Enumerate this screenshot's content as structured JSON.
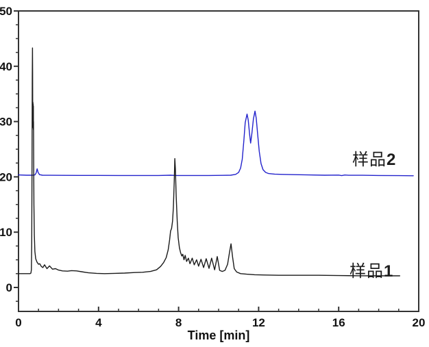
{
  "chart_data": {
    "type": "line",
    "title": "",
    "xlabel": "Time [min]",
    "ylabel": "",
    "xlim": [
      0,
      20
    ],
    "ylim": [
      -4.33,
      50
    ],
    "xticks": [
      0,
      4,
      8,
      12,
      16,
      20
    ],
    "yticks": [
      0,
      10,
      20,
      30,
      40,
      50
    ],
    "x_minor_step": 1,
    "y_minor_step": 2.5,
    "grid": false,
    "legend_position": "inline-right",
    "axis_color": "#333333",
    "series": [
      {
        "name": "样品2",
        "color": "#2222cc",
        "annotation": "double peak at ~11.4 and ~11.8 min, baseline offset +20",
        "points": [
          [
            0,
            20.35
          ],
          [
            0.4,
            20.3
          ],
          [
            0.7,
            20.3
          ],
          [
            0.82,
            20.35
          ],
          [
            0.88,
            20.7
          ],
          [
            0.93,
            21.45
          ],
          [
            0.98,
            20.8
          ],
          [
            1.05,
            20.4
          ],
          [
            1.2,
            20.3
          ],
          [
            1.6,
            20.28
          ],
          [
            2.2,
            20.27
          ],
          [
            3,
            20.26
          ],
          [
            4,
            20.26
          ],
          [
            5,
            20.25
          ],
          [
            6,
            20.25
          ],
          [
            7,
            20.25
          ],
          [
            7.6,
            20.3
          ],
          [
            7.9,
            20.25
          ],
          [
            8.5,
            20.25
          ],
          [
            9.5,
            20.25
          ],
          [
            10.2,
            20.27
          ],
          [
            10.6,
            20.3
          ],
          [
            10.85,
            20.45
          ],
          [
            11.0,
            20.8
          ],
          [
            11.1,
            21.6
          ],
          [
            11.18,
            23.2
          ],
          [
            11.26,
            26.5
          ],
          [
            11.33,
            29.8
          ],
          [
            11.42,
            31.35
          ],
          [
            11.48,
            30.3
          ],
          [
            11.55,
            27.6
          ],
          [
            11.6,
            26.1
          ],
          [
            11.66,
            27.8
          ],
          [
            11.74,
            30.5
          ],
          [
            11.82,
            31.9
          ],
          [
            11.88,
            30.6
          ],
          [
            11.95,
            27.8
          ],
          [
            12.03,
            24.6
          ],
          [
            12.12,
            22.4
          ],
          [
            12.22,
            21.3
          ],
          [
            12.35,
            20.8
          ],
          [
            12.5,
            20.6
          ],
          [
            12.8,
            20.5
          ],
          [
            13.2,
            20.45
          ],
          [
            13.8,
            20.4
          ],
          [
            14.5,
            20.35
          ],
          [
            15.3,
            20.3
          ],
          [
            16.0,
            20.32
          ],
          [
            16.15,
            20.22
          ],
          [
            16.3,
            20.33
          ],
          [
            16.5,
            20.28
          ],
          [
            17.2,
            20.28
          ],
          [
            18.0,
            20.25
          ],
          [
            19.0,
            20.22
          ],
          [
            19.73,
            20.2
          ]
        ]
      },
      {
        "name": "样品1",
        "color": "#1a1a1a",
        "annotation": "solvent spike ~0.7 min (apex 43.3), main peak ~7.8 min (23.3), cluster of small peaks 8.2-10 min, sharp peak ~10.6 min (7.9)",
        "points": [
          [
            0,
            2.5
          ],
          [
            0.2,
            2.5
          ],
          [
            0.45,
            2.5
          ],
          [
            0.58,
            2.5
          ],
          [
            0.62,
            2.6
          ],
          [
            0.645,
            3.2
          ],
          [
            0.66,
            8
          ],
          [
            0.67,
            18
          ],
          [
            0.68,
            30
          ],
          [
            0.69,
            38
          ],
          [
            0.7,
            43.3
          ],
          [
            0.705,
            39
          ],
          [
            0.71,
            33.6
          ],
          [
            0.714,
            29.2
          ],
          [
            0.718,
            33.5
          ],
          [
            0.722,
            29.0
          ],
          [
            0.726,
            33.3
          ],
          [
            0.73,
            28.9
          ],
          [
            0.734,
            33.1
          ],
          [
            0.738,
            28.7
          ],
          [
            0.742,
            32.8
          ],
          [
            0.746,
            28.5
          ],
          [
            0.75,
            30
          ],
          [
            0.76,
            22
          ],
          [
            0.77,
            15
          ],
          [
            0.79,
            9.5
          ],
          [
            0.82,
            6.5
          ],
          [
            0.86,
            5.2
          ],
          [
            0.92,
            4.6
          ],
          [
            1.0,
            4.2
          ],
          [
            1.06,
            4.3
          ],
          [
            1.14,
            3.8
          ],
          [
            1.22,
            3.6
          ],
          [
            1.3,
            4.1
          ],
          [
            1.42,
            3.4
          ],
          [
            1.55,
            3.9
          ],
          [
            1.7,
            3.3
          ],
          [
            1.85,
            3.4
          ],
          [
            2.0,
            3.15
          ],
          [
            2.2,
            3.0
          ],
          [
            2.45,
            2.95
          ],
          [
            2.65,
            3.05
          ],
          [
            2.9,
            3.0
          ],
          [
            3.15,
            2.85
          ],
          [
            3.5,
            2.65
          ],
          [
            3.9,
            2.55
          ],
          [
            4.3,
            2.5
          ],
          [
            4.8,
            2.55
          ],
          [
            5.3,
            2.6
          ],
          [
            5.8,
            2.7
          ],
          [
            6.2,
            2.75
          ],
          [
            6.6,
            2.9
          ],
          [
            6.9,
            3.2
          ],
          [
            7.1,
            3.8
          ],
          [
            7.25,
            4.5
          ],
          [
            7.38,
            5.4
          ],
          [
            7.48,
            6.8
          ],
          [
            7.55,
            8.6
          ],
          [
            7.6,
            10.2
          ],
          [
            7.65,
            10.7
          ],
          [
            7.7,
            12.0
          ],
          [
            7.74,
            14.5
          ],
          [
            7.78,
            19.0
          ],
          [
            7.81,
            23.3
          ],
          [
            7.84,
            21.5
          ],
          [
            7.88,
            16.5
          ],
          [
            7.93,
            12.0
          ],
          [
            7.98,
            9.0
          ],
          [
            8.04,
            7.2
          ],
          [
            8.1,
            6.3
          ],
          [
            8.16,
            5.7
          ],
          [
            8.21,
            6.0
          ],
          [
            8.27,
            5.0
          ],
          [
            8.33,
            5.8
          ],
          [
            8.4,
            4.7
          ],
          [
            8.49,
            5.3
          ],
          [
            8.57,
            4.3
          ],
          [
            8.68,
            5.3
          ],
          [
            8.78,
            4.1
          ],
          [
            8.9,
            5.0
          ],
          [
            9.0,
            3.85
          ],
          [
            9.12,
            5.1
          ],
          [
            9.25,
            3.6
          ],
          [
            9.38,
            5.2
          ],
          [
            9.52,
            3.45
          ],
          [
            9.65,
            5.3
          ],
          [
            9.8,
            3.2
          ],
          [
            9.93,
            5.6
          ],
          [
            10.05,
            3.1
          ],
          [
            10.18,
            2.9
          ],
          [
            10.32,
            3.1
          ],
          [
            10.45,
            4.2
          ],
          [
            10.55,
            6.5
          ],
          [
            10.62,
            7.9
          ],
          [
            10.7,
            5.5
          ],
          [
            10.78,
            3.4
          ],
          [
            10.9,
            2.8
          ],
          [
            11.1,
            2.5
          ],
          [
            11.4,
            2.4
          ],
          [
            11.8,
            2.3
          ],
          [
            12.3,
            2.25
          ],
          [
            13,
            2.2
          ],
          [
            14,
            2.2
          ],
          [
            15,
            2.2
          ],
          [
            16,
            2.15
          ],
          [
            17,
            2.12
          ],
          [
            18,
            2.1
          ],
          [
            19.05,
            2.1
          ]
        ]
      }
    ]
  },
  "series_labels": {
    "s2": {
      "cn": "样品",
      "num": "2"
    },
    "s1": {
      "cn": "样品",
      "num": "1"
    }
  }
}
